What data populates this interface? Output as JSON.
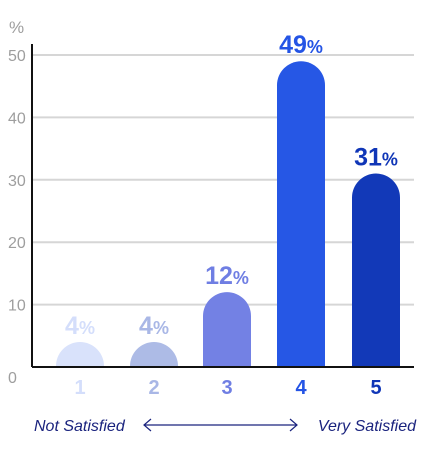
{
  "chart_data": {
    "type": "bar",
    "unit_label": "%",
    "categories": [
      "1",
      "2",
      "3",
      "4",
      "5"
    ],
    "values": [
      4,
      4,
      12,
      49,
      31
    ],
    "value_suffix": "%",
    "ylim": [
      0,
      50
    ],
    "yticks": [
      0,
      10,
      20,
      30,
      40,
      50
    ],
    "grid": true,
    "colors": [
      "#d9e2fb",
      "#adbbe6",
      "#7381e4",
      "#2657e5",
      "#1239b8"
    ],
    "label_colors": [
      "#d4defb",
      "#a9b7e6",
      "#6f7ee3",
      "#2454e5",
      "#1036b7"
    ],
    "scale_left_label": "Not Satisfied",
    "scale_right_label": "Very Satisfied"
  }
}
